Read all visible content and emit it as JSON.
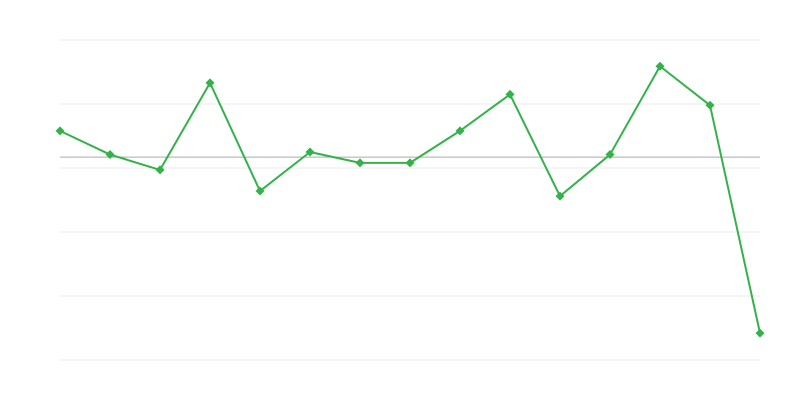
{
  "chart_data": {
    "type": "line",
    "title": "",
    "xlabel": "",
    "ylabel": "",
    "x": [
      1,
      2,
      3,
      4,
      5,
      6,
      7,
      8,
      9,
      10,
      11,
      12,
      13,
      14,
      15
    ],
    "series": [
      {
        "values": [
          3.58,
          3.21,
          2.97,
          4.33,
          2.64,
          3.25,
          3.08,
          3.08,
          3.58,
          4.15,
          2.56,
          3.21,
          4.59,
          3.98,
          0.42
        ],
        "color": "#34b24a"
      }
    ],
    "reference_line": 3.17,
    "reference_color": "#aaaaaa",
    "ylim": [
      0,
      5
    ],
    "yticks": [
      0,
      1,
      2,
      3,
      4,
      5
    ],
    "grid": true,
    "grid_color": "#ebebeb",
    "marker": "diamond",
    "legend": "none"
  }
}
